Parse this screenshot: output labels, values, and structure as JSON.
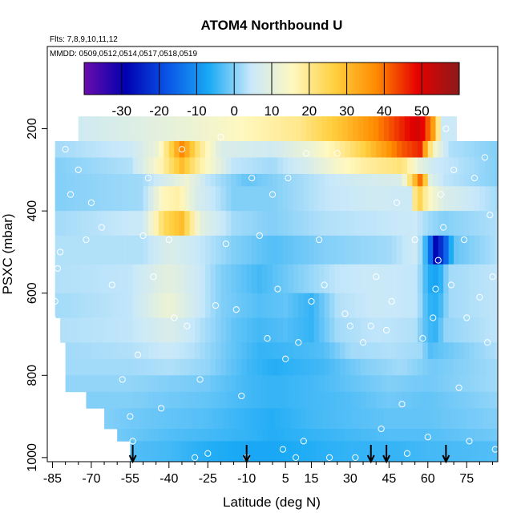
{
  "chart_data": {
    "type": "heatmap",
    "title": "ATOM4 Northbound U",
    "flights_note": "Flts: 7,8,9,10,11,12",
    "dates_note": "MMDD: 0509,0512,0514,0517,0518,0519",
    "xlabel": "Latitude (deg N)",
    "ylabel": "PSXC (mbar)",
    "xlim": [
      -87,
      87
    ],
    "ylim": [
      1010,
      0
    ],
    "x_ticks_major": [
      -85,
      -70,
      -55,
      -40,
      -25,
      -10,
      5,
      15,
      30,
      45,
      60,
      75
    ],
    "x_ticks_minor": [
      -80,
      -75,
      -65,
      -60,
      -50,
      -45,
      -35,
      -30,
      -20,
      -15,
      -5,
      0,
      10,
      20,
      25,
      35,
      40,
      50,
      55,
      65,
      70,
      80,
      85
    ],
    "y_ticks": [
      200,
      400,
      600,
      800,
      1000
    ],
    "colorbar": {
      "range": [
        -40,
        60
      ],
      "ticks": [
        -30,
        -20,
        -10,
        0,
        10,
        20,
        30,
        40,
        50
      ],
      "colors": [
        "#6a0dad",
        "#0000b0",
        "#0a55e6",
        "#1aaaf5",
        "#c8e8fa",
        "#fff8c0",
        "#ffd040",
        "#ff8c00",
        "#e60000",
        "#8b1a1a"
      ]
    },
    "arrow_latitudes": [
      -54,
      -10,
      38,
      44,
      67
    ],
    "layers": [
      {
        "p_top": 170,
        "p_bot": 230,
        "lat_min": -75,
        "lat_max": 70,
        "nodes": [
          [
            -75,
            6
          ],
          [
            -50,
            9
          ],
          [
            -30,
            12
          ],
          [
            -10,
            16
          ],
          [
            10,
            20
          ],
          [
            25,
            28
          ],
          [
            40,
            38
          ],
          [
            50,
            46
          ],
          [
            57,
            52
          ],
          [
            62,
            35
          ],
          [
            66,
            5
          ]
        ]
      },
      {
        "p_top": 230,
        "p_bot": 270,
        "lat_min": -84,
        "lat_max": 87,
        "nodes": [
          [
            -84,
            2
          ],
          [
            -55,
            5
          ],
          [
            -44,
            12
          ],
          [
            -35,
            38
          ],
          [
            -28,
            20
          ],
          [
            -20,
            8
          ],
          [
            0,
            6
          ],
          [
            15,
            12
          ],
          [
            25,
            18
          ],
          [
            35,
            26
          ],
          [
            50,
            42
          ],
          [
            57,
            46
          ],
          [
            62,
            15
          ],
          [
            68,
            3
          ],
          [
            87,
            0
          ]
        ]
      },
      {
        "p_top": 270,
        "p_bot": 310,
        "lat_min": -84,
        "lat_max": 87,
        "nodes": [
          [
            -84,
            0
          ],
          [
            -55,
            3
          ],
          [
            -44,
            15
          ],
          [
            -35,
            30
          ],
          [
            -28,
            18
          ],
          [
            -15,
            4
          ],
          [
            0,
            2
          ],
          [
            15,
            8
          ],
          [
            25,
            14
          ],
          [
            35,
            18
          ],
          [
            50,
            22
          ],
          [
            57,
            10
          ],
          [
            63,
            5
          ],
          [
            87,
            0
          ]
        ]
      },
      {
        "p_top": 310,
        "p_bot": 340,
        "lat_min": -84,
        "lat_max": 87,
        "nodes": [
          [
            -84,
            0
          ],
          [
            -50,
            2
          ],
          [
            -40,
            8
          ],
          [
            -33,
            12
          ],
          [
            -25,
            4
          ],
          [
            -10,
            -2
          ],
          [
            10,
            2
          ],
          [
            30,
            6
          ],
          [
            50,
            8
          ],
          [
            56,
            35
          ],
          [
            58,
            45
          ],
          [
            60,
            10
          ],
          [
            66,
            4
          ],
          [
            87,
            0
          ]
        ]
      },
      {
        "p_top": 340,
        "p_bot": 400,
        "lat_min": -84,
        "lat_max": 87,
        "nodes": [
          [
            -84,
            0
          ],
          [
            -50,
            2
          ],
          [
            -42,
            16
          ],
          [
            -36,
            18
          ],
          [
            -30,
            8
          ],
          [
            -15,
            0
          ],
          [
            0,
            0
          ],
          [
            20,
            4
          ],
          [
            40,
            6
          ],
          [
            53,
            5
          ],
          [
            56,
            28
          ],
          [
            60,
            16
          ],
          [
            66,
            8
          ],
          [
            87,
            2
          ]
        ]
      },
      {
        "p_top": 400,
        "p_bot": 460,
        "lat_min": -84,
        "lat_max": 87,
        "nodes": [
          [
            -84,
            2
          ],
          [
            -50,
            5
          ],
          [
            -42,
            24
          ],
          [
            -35,
            30
          ],
          [
            -28,
            10
          ],
          [
            -15,
            2
          ],
          [
            0,
            0
          ],
          [
            20,
            3
          ],
          [
            40,
            4
          ],
          [
            55,
            5
          ],
          [
            60,
            2
          ],
          [
            66,
            0
          ],
          [
            87,
            3
          ]
        ]
      },
      {
        "p_top": 460,
        "p_bot": 530,
        "lat_min": -84,
        "lat_max": 87,
        "nodes": [
          [
            -84,
            3
          ],
          [
            -50,
            3
          ],
          [
            -40,
            8
          ],
          [
            -30,
            5
          ],
          [
            -15,
            0
          ],
          [
            0,
            -3
          ],
          [
            20,
            0
          ],
          [
            45,
            2
          ],
          [
            56,
            6
          ],
          [
            60,
            -8
          ],
          [
            63,
            -28
          ],
          [
            66,
            -20
          ],
          [
            70,
            -2
          ],
          [
            87,
            3
          ]
        ]
      },
      {
        "p_top": 530,
        "p_bot": 600,
        "lat_min": -84,
        "lat_max": 87,
        "nodes": [
          [
            -84,
            3
          ],
          [
            -55,
            4
          ],
          [
            -40,
            10
          ],
          [
            -30,
            6
          ],
          [
            -20,
            0
          ],
          [
            -5,
            -4
          ],
          [
            10,
            0
          ],
          [
            25,
            4
          ],
          [
            40,
            5
          ],
          [
            56,
            4
          ],
          [
            60,
            -6
          ],
          [
            64,
            -8
          ],
          [
            68,
            2
          ],
          [
            87,
            4
          ]
        ]
      },
      {
        "p_top": 600,
        "p_bot": 660,
        "lat_min": -84,
        "lat_max": 87,
        "nodes": [
          [
            -84,
            2
          ],
          [
            -55,
            4
          ],
          [
            -40,
            12
          ],
          [
            -30,
            6
          ],
          [
            -20,
            0
          ],
          [
            -5,
            -3
          ],
          [
            5,
            -2
          ],
          [
            15,
            -5
          ],
          [
            25,
            3
          ],
          [
            40,
            5
          ],
          [
            56,
            4
          ],
          [
            60,
            -5
          ],
          [
            64,
            -6
          ],
          [
            68,
            2
          ],
          [
            87,
            4
          ]
        ]
      },
      {
        "p_top": 660,
        "p_bot": 720,
        "lat_min": -82,
        "lat_max": 87,
        "nodes": [
          [
            -82,
            3
          ],
          [
            -55,
            4
          ],
          [
            -40,
            8
          ],
          [
            -30,
            4
          ],
          [
            -15,
            -2
          ],
          [
            -5,
            -4
          ],
          [
            5,
            -3
          ],
          [
            15,
            -5
          ],
          [
            25,
            2
          ],
          [
            40,
            4
          ],
          [
            55,
            3
          ],
          [
            60,
            -4
          ],
          [
            63,
            -5
          ],
          [
            67,
            1
          ],
          [
            87,
            4
          ]
        ]
      },
      {
        "p_top": 720,
        "p_bot": 760,
        "lat_min": -80,
        "lat_max": 87,
        "nodes": [
          [
            -80,
            2
          ],
          [
            -55,
            3
          ],
          [
            -40,
            5
          ],
          [
            -30,
            3
          ],
          [
            -15,
            -2
          ],
          [
            -5,
            -5
          ],
          [
            10,
            -4
          ],
          [
            20,
            -3
          ],
          [
            30,
            2
          ],
          [
            45,
            3
          ],
          [
            57,
            2
          ],
          [
            61,
            -3
          ],
          [
            65,
            -2
          ],
          [
            87,
            3
          ]
        ]
      },
      {
        "p_top": 760,
        "p_bot": 800,
        "lat_min": -80,
        "lat_max": 87,
        "nodes": [
          [
            -80,
            2
          ],
          [
            -55,
            2
          ],
          [
            -40,
            3
          ],
          [
            -25,
            1
          ],
          [
            -10,
            -4
          ],
          [
            0,
            -6
          ],
          [
            10,
            -5
          ],
          [
            20,
            -4
          ],
          [
            35,
            0
          ],
          [
            50,
            2
          ],
          [
            62,
            -1
          ],
          [
            87,
            2
          ]
        ]
      },
      {
        "p_top": 800,
        "p_bot": 840,
        "lat_min": -80,
        "lat_max": 87,
        "nodes": [
          [
            -80,
            1
          ],
          [
            -55,
            1
          ],
          [
            -40,
            0
          ],
          [
            -25,
            -1
          ],
          [
            -10,
            -4
          ],
          [
            0,
            -5
          ],
          [
            15,
            -4
          ],
          [
            30,
            -2
          ],
          [
            45,
            0
          ],
          [
            60,
            -1
          ],
          [
            87,
            2
          ]
        ]
      },
      {
        "p_top": 840,
        "p_bot": 880,
        "lat_min": -72,
        "lat_max": 87,
        "nodes": [
          [
            -72,
            0
          ],
          [
            -55,
            0
          ],
          [
            -40,
            -1
          ],
          [
            -25,
            -2
          ],
          [
            -10,
            -4
          ],
          [
            0,
            -5
          ],
          [
            15,
            -4
          ],
          [
            30,
            -3
          ],
          [
            45,
            -1
          ],
          [
            60,
            -2
          ],
          [
            87,
            1
          ]
        ]
      },
      {
        "p_top": 880,
        "p_bot": 930,
        "lat_min": -65,
        "lat_max": 87,
        "nodes": [
          [
            -65,
            0
          ],
          [
            -55,
            -1
          ],
          [
            -40,
            -2
          ],
          [
            -25,
            -3
          ],
          [
            -10,
            -5
          ],
          [
            0,
            -6
          ],
          [
            15,
            -4
          ],
          [
            30,
            -3
          ],
          [
            45,
            -2
          ],
          [
            60,
            -2
          ],
          [
            87,
            0
          ]
        ]
      },
      {
        "p_top": 930,
        "p_bot": 960,
        "lat_min": -60,
        "lat_max": 87,
        "nodes": [
          [
            -60,
            -1
          ],
          [
            -40,
            -3
          ],
          [
            -25,
            -4
          ],
          [
            -10,
            -5
          ],
          [
            0,
            -6
          ],
          [
            15,
            -5
          ],
          [
            30,
            -4
          ],
          [
            45,
            -3
          ],
          [
            60,
            -3
          ],
          [
            87,
            -1
          ]
        ]
      },
      {
        "p_top": 960,
        "p_bot": 1010,
        "lat_min": -55,
        "lat_max": 87,
        "nodes": [
          [
            -55,
            -3
          ],
          [
            -40,
            -4
          ],
          [
            -25,
            -6
          ],
          [
            -10,
            -7
          ],
          [
            0,
            -7
          ],
          [
            15,
            -6
          ],
          [
            30,
            -5
          ],
          [
            45,
            -5
          ],
          [
            60,
            -4
          ],
          [
            87,
            -3
          ]
        ]
      }
    ],
    "points": [
      [
        -86,
        210
      ],
      [
        -85,
        660
      ],
      [
        -84,
        620
      ],
      [
        -83,
        540
      ],
      [
        -82,
        500
      ],
      [
        -80,
        250
      ],
      [
        -78,
        360
      ],
      [
        -75,
        300
      ],
      [
        -72,
        470
      ],
      [
        -70,
        380
      ],
      [
        -66,
        440
      ],
      [
        -62,
        580
      ],
      [
        -58,
        810
      ],
      [
        -55,
        900
      ],
      [
        -54,
        960
      ],
      [
        -52,
        750
      ],
      [
        -50,
        460
      ],
      [
        -48,
        320
      ],
      [
        -46,
        560
      ],
      [
        -43,
        880
      ],
      [
        -40,
        470
      ],
      [
        -38,
        660
      ],
      [
        -35,
        250
      ],
      [
        -33,
        680
      ],
      [
        -30,
        1000
      ],
      [
        -28,
        810
      ],
      [
        -25,
        990
      ],
      [
        -22,
        630
      ],
      [
        -20,
        220
      ],
      [
        -18,
        480
      ],
      [
        -14,
        640
      ],
      [
        -12,
        850
      ],
      [
        -10,
        1000
      ],
      [
        -8,
        320
      ],
      [
        -5,
        460
      ],
      [
        -2,
        710
      ],
      [
        0,
        360
      ],
      [
        2,
        590
      ],
      [
        4,
        980
      ],
      [
        5,
        760
      ],
      [
        6,
        320
      ],
      [
        9,
        1000
      ],
      [
        10,
        720
      ],
      [
        12,
        960
      ],
      [
        13,
        260
      ],
      [
        15,
        620
      ],
      [
        18,
        470
      ],
      [
        20,
        580
      ],
      [
        22,
        1000
      ],
      [
        25,
        260
      ],
      [
        28,
        650
      ],
      [
        30,
        680
      ],
      [
        32,
        1000
      ],
      [
        35,
        720
      ],
      [
        38,
        680
      ],
      [
        40,
        560
      ],
      [
        42,
        930
      ],
      [
        44,
        690
      ],
      [
        46,
        620
      ],
      [
        48,
        380
      ],
      [
        50,
        870
      ],
      [
        52,
        990
      ],
      [
        55,
        470
      ],
      [
        58,
        710
      ],
      [
        60,
        950
      ],
      [
        62,
        660
      ],
      [
        63,
        590
      ],
      [
        64,
        520
      ],
      [
        65,
        360
      ],
      [
        66,
        440
      ],
      [
        67,
        200
      ],
      [
        69,
        580
      ],
      [
        70,
        300
      ],
      [
        72,
        830
      ],
      [
        74,
        470
      ],
      [
        75,
        660
      ],
      [
        76,
        960
      ],
      [
        78,
        320
      ],
      [
        80,
        610
      ],
      [
        82,
        270
      ],
      [
        83,
        720
      ],
      [
        84,
        410
      ],
      [
        85,
        560
      ],
      [
        86,
        980
      ]
    ]
  }
}
